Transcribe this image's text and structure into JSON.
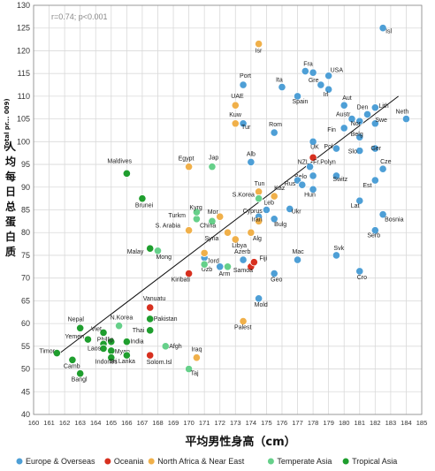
{
  "chart_data": {
    "type": "scatter",
    "xlabel": "平均男性身高（cm）",
    "ylabel_cn": "人均每日总蛋白质",
    "ylabel_en": "Total pr... 009)",
    "annotation": "r=0.74; p<0.001",
    "xlim": [
      160,
      185
    ],
    "ylim": [
      40,
      130
    ],
    "xticks": [
      160,
      161,
      162,
      163,
      164,
      165,
      166,
      167,
      168,
      169,
      170,
      171,
      172,
      173,
      174,
      175,
      176,
      177,
      178,
      179,
      180,
      181,
      182,
      183,
      184,
      185
    ],
    "yticks": [
      40,
      45,
      50,
      55,
      60,
      65,
      70,
      75,
      80,
      85,
      90,
      95,
      100,
      105,
      110,
      115,
      120,
      125,
      130
    ],
    "grid": true,
    "legend_position": "bottom",
    "colors": {
      "europe": "#4e9fd6",
      "oceania": "#d7301f",
      "africa": "#f0b04a",
      "temperate": "#66d08a",
      "tropical": "#1f9e2e"
    },
    "trendline": {
      "x": [
        161.5,
        183.5
      ],
      "y": [
        53,
        110
      ]
    },
    "series": [
      {
        "key": "europe",
        "name": "Europe & Overseas"
      },
      {
        "key": "oceania",
        "name": "Oceania"
      },
      {
        "key": "africa",
        "name": "North Africa & Near East"
      },
      {
        "key": "temperate",
        "name": "Temperate Asia"
      },
      {
        "key": "tropical",
        "name": "Tropical Asia"
      }
    ],
    "points": [
      {
        "s": "europe",
        "x": 182.5,
        "y": 125,
        "l": "Isl",
        "lx": 3,
        "ly": 6
      },
      {
        "s": "europe",
        "x": 184,
        "y": 105,
        "l": "Neth",
        "lx": -12,
        "ly": -6
      },
      {
        "s": "europe",
        "x": 177.5,
        "y": 115.5,
        "l": "Fra",
        "lx": -2,
        "ly": -6
      },
      {
        "s": "europe",
        "x": 178,
        "y": 115.2,
        "l": "",
        "lx": 0,
        "ly": 0
      },
      {
        "s": "europe",
        "x": 179,
        "y": 114.5,
        "l": "USA",
        "lx": 2,
        "ly": -4
      },
      {
        "s": "europe",
        "x": 178.5,
        "y": 112.5,
        "l": "Gre",
        "lx": -14,
        "ly": -3
      },
      {
        "s": "europe",
        "x": 176,
        "y": 112,
        "l": "Ita",
        "lx": -7,
        "ly": -6
      },
      {
        "s": "europe",
        "x": 179,
        "y": 111.5,
        "l": "Irl",
        "lx": -6,
        "ly": 8
      },
      {
        "s": "europe",
        "x": 177,
        "y": 110,
        "l": "Spain",
        "lx": -6,
        "ly": 8
      },
      {
        "s": "europe",
        "x": 173.5,
        "y": 112.5,
        "l": "Port",
        "lx": -4,
        "ly": -8
      },
      {
        "s": "europe",
        "x": 180,
        "y": 108,
        "l": "Aut",
        "lx": -2,
        "ly": -6
      },
      {
        "s": "europe",
        "x": 182,
        "y": 107.5,
        "l": "Lith",
        "lx": 4,
        "ly": 0
      },
      {
        "s": "europe",
        "x": 180.5,
        "y": 105,
        "l": "Austr",
        "lx": -18,
        "ly": -3
      },
      {
        "s": "europe",
        "x": 181.5,
        "y": 106,
        "l": "Den",
        "lx": -12,
        "ly": -6
      },
      {
        "s": "europe",
        "x": 182,
        "y": 104,
        "l": "Swe",
        "lx": 0,
        "ly": -2
      },
      {
        "s": "europe",
        "x": 181,
        "y": 104.5,
        "l": "Nor",
        "lx": -10,
        "ly": 5
      },
      {
        "s": "europe",
        "x": 180,
        "y": 103,
        "l": "Fin",
        "lx": -19,
        "ly": 4
      },
      {
        "s": "europe",
        "x": 181,
        "y": 101,
        "l": "Belg",
        "lx": -10,
        "ly": -1
      },
      {
        "s": "europe",
        "x": 173.5,
        "y": 104,
        "l": "Tur",
        "lx": -2,
        "ly": 6
      },
      {
        "s": "europe",
        "x": 175.5,
        "y": 102,
        "l": "Rom",
        "lx": -6,
        "ly": -7
      },
      {
        "s": "europe",
        "x": 178,
        "y": 100,
        "l": "UK",
        "lx": -3,
        "ly": 8
      },
      {
        "s": "europe",
        "x": 179.5,
        "y": 98.5,
        "l": "Pol",
        "lx": -14,
        "ly": 0
      },
      {
        "s": "europe",
        "x": 181,
        "y": 98,
        "l": "Slo",
        "lx": -13,
        "ly": 3
      },
      {
        "s": "europe",
        "x": 182,
        "y": 98.5,
        "l": "Ger",
        "lx": -5,
        "ly": 2
      },
      {
        "s": "europe",
        "x": 174,
        "y": 95.5,
        "l": "Alb",
        "lx": -5,
        "ly": -7
      },
      {
        "s": "europe",
        "x": 177.8,
        "y": 94.5,
        "l": "NZL",
        "lx": -14,
        "ly": -3
      },
      {
        "s": "europe",
        "x": 182.5,
        "y": 94,
        "l": "Cze",
        "lx": -3,
        "ly": -6
      },
      {
        "s": "europe",
        "x": 178,
        "y": 92.5,
        "l": "Belo",
        "lx": -21,
        "ly": 3
      },
      {
        "s": "europe",
        "x": 179.5,
        "y": 92.5,
        "l": "Switz",
        "lx": -4,
        "ly": 6
      },
      {
        "s": "europe",
        "x": 177,
        "y": 91.5,
        "l": "",
        "lx": 0,
        "ly": 0
      },
      {
        "s": "europe",
        "x": 177.3,
        "y": 90.5,
        "l": "Rus",
        "lx": -20,
        "ly": 1
      },
      {
        "s": "europe",
        "x": 182,
        "y": 91.5,
        "l": "Est",
        "lx": -14,
        "ly": 8
      },
      {
        "s": "europe",
        "x": 178,
        "y": 89.5,
        "l": "Hun",
        "lx": -10,
        "ly": 8
      },
      {
        "s": "europe",
        "x": 181,
        "y": 87,
        "l": "Lat",
        "lx": -10,
        "ly": 8
      },
      {
        "s": "europe",
        "x": 175,
        "y": 85,
        "l": "Leb",
        "lx": -3,
        "ly": -6
      },
      {
        "s": "europe",
        "x": 174.5,
        "y": 83.5,
        "l": "Cyprus",
        "lx": -18,
        "ly": -4
      },
      {
        "s": "europe",
        "x": 176.5,
        "y": 85.2,
        "l": "Ukr",
        "lx": 2,
        "ly": 5
      },
      {
        "s": "europe",
        "x": 175.5,
        "y": 83,
        "l": "Bulg",
        "lx": 0,
        "ly": 8
      },
      {
        "s": "europe",
        "x": 182.5,
        "y": 84,
        "l": "Bosnia",
        "lx": 2,
        "ly": 8
      },
      {
        "s": "europe",
        "x": 182,
        "y": 80.5,
        "l": "Serb",
        "lx": -9,
        "ly": 8
      },
      {
        "s": "europe",
        "x": 179.5,
        "y": 75,
        "l": "Svk",
        "lx": -3,
        "ly": -6
      },
      {
        "s": "europe",
        "x": 177,
        "y": 74,
        "l": "Mac",
        "lx": -6,
        "ly": -7
      },
      {
        "s": "europe",
        "x": 173.5,
        "y": 74,
        "l": "Azerb",
        "lx": -10,
        "ly": -7
      },
      {
        "s": "europe",
        "x": 172,
        "y": 72.5,
        "l": "Uzb",
        "lx": -21,
        "ly": 5
      },
      {
        "s": "europe",
        "x": 171,
        "y": 74.5,
        "l": "Jord",
        "lx": 3,
        "ly": 6
      },
      {
        "s": "europe",
        "x": 175.5,
        "y": 71,
        "l": "Geo",
        "lx": -4,
        "ly": 9
      },
      {
        "s": "europe",
        "x": 181,
        "y": 71.5,
        "l": "Cro",
        "lx": -3,
        "ly": 9
      },
      {
        "s": "europe",
        "x": 174.5,
        "y": 65.5,
        "l": "Mold",
        "lx": -5,
        "ly": 9
      },
      {
        "s": "oceania",
        "x": 167.5,
        "y": 63.5,
        "l": "Vanuatu",
        "lx": -8,
        "ly": -8
      },
      {
        "s": "oceania",
        "x": 170,
        "y": 71,
        "l": "Kiribati",
        "lx": -20,
        "ly": 9
      },
      {
        "s": "oceania",
        "x": 174,
        "y": 72.5,
        "l": "Samoa",
        "lx": -20,
        "ly": 6
      },
      {
        "s": "oceania",
        "x": 174.2,
        "y": 73.5,
        "l": "Fiji",
        "lx": 6,
        "ly": -2
      },
      {
        "s": "oceania",
        "x": 178,
        "y": 96.5,
        "l": "Fr.Polyn",
        "lx": 0,
        "ly": 7
      },
      {
        "s": "oceania",
        "x": 167.5,
        "y": 53,
        "l": "Solom.Isl",
        "lx": -4,
        "ly": 10
      },
      {
        "s": "africa",
        "x": 174.5,
        "y": 121.5,
        "l": "Isr",
        "lx": -4,
        "ly": 10
      },
      {
        "s": "africa",
        "x": 173,
        "y": 108,
        "l": "UAE",
        "lx": -5,
        "ly": -8
      },
      {
        "s": "africa",
        "x": 173,
        "y": 104,
        "l": "Kuw",
        "lx": -7,
        "ly": -8
      },
      {
        "s": "africa",
        "x": 170,
        "y": 94.5,
        "l": "Egypt",
        "lx": -12,
        "ly": -7
      },
      {
        "s": "africa",
        "x": 174.5,
        "y": 89,
        "l": "Tun",
        "lx": -5,
        "ly": -7
      },
      {
        "s": "africa",
        "x": 175.5,
        "y": 88,
        "l": "Kaz",
        "lx": 0,
        "ly": -7
      },
      {
        "s": "africa",
        "x": 172,
        "y": 83.5,
        "l": "Mor",
        "lx": -14,
        "ly": -3
      },
      {
        "s": "africa",
        "x": 174.5,
        "y": 82.5,
        "l": "Iran",
        "lx": -8,
        "ly": 0
      },
      {
        "s": "africa",
        "x": 170,
        "y": 80.5,
        "l": "S. Arabia",
        "lx": -38,
        "ly": -3
      },
      {
        "s": "africa",
        "x": 172.5,
        "y": 80,
        "l": "Syria",
        "lx": -26,
        "ly": 9
      },
      {
        "s": "africa",
        "x": 173,
        "y": 78.5,
        "l": "Libya",
        "lx": -4,
        "ly": 9
      },
      {
        "s": "africa",
        "x": 174,
        "y": 80,
        "l": "Alg",
        "lx": 2,
        "ly": 9
      },
      {
        "s": "africa",
        "x": 171,
        "y": 75.5,
        "l": "",
        "lx": 0,
        "ly": 0
      },
      {
        "s": "africa",
        "x": 173.5,
        "y": 60.5,
        "l": "Palest",
        "lx": -10,
        "ly": 9
      },
      {
        "s": "africa",
        "x": 170.5,
        "y": 52.5,
        "l": "Iraq",
        "lx": -6,
        "ly": -7
      },
      {
        "s": "temperate",
        "x": 171.5,
        "y": 94.5,
        "l": "Jap",
        "lx": -4,
        "ly": -8
      },
      {
        "s": "temperate",
        "x": 174.5,
        "y": 87.5,
        "l": "S.Korea",
        "lx": -30,
        "ly": -2
      },
      {
        "s": "temperate",
        "x": 170.5,
        "y": 83,
        "l": "Turkm",
        "lx": -32,
        "ly": -2
      },
      {
        "s": "temperate",
        "x": 171.5,
        "y": 82.5,
        "l": "China",
        "lx": -14,
        "ly": 7
      },
      {
        "s": "temperate",
        "x": 170.5,
        "y": 84.5,
        "l": "Kyrg",
        "lx": -8,
        "ly": -3
      },
      {
        "s": "temperate",
        "x": 168,
        "y": 76,
        "l": "Mong",
        "lx": -2,
        "ly": 9
      },
      {
        "s": "temperate",
        "x": 171,
        "y": 73,
        "l": "",
        "lx": 0,
        "ly": 0
      },
      {
        "s": "temperate",
        "x": 172.5,
        "y": 72.5,
        "l": "Arm",
        "lx": -10,
        "ly": 10
      },
      {
        "s": "temperate",
        "x": 165.5,
        "y": 59.5,
        "l": "N.Korea",
        "lx": -10,
        "ly": -7
      },
      {
        "s": "temperate",
        "x": 168.5,
        "y": 55,
        "l": "Afgh",
        "lx": 4,
        "ly": 2
      },
      {
        "s": "temperate",
        "x": 170,
        "y": 50,
        "l": "Taj",
        "lx": 2,
        "ly": 7
      },
      {
        "s": "tropical",
        "x": 166,
        "y": 93,
        "l": "Maldives",
        "lx": -22,
        "ly": -12
      },
      {
        "s": "tropical",
        "x": 167,
        "y": 87.5,
        "l": "Brunei",
        "lx": -8,
        "ly": 10
      },
      {
        "s": "tropical",
        "x": 167.5,
        "y": 76.5,
        "l": "Malay",
        "lx": -26,
        "ly": 6
      },
      {
        "s": "tropical",
        "x": 167.5,
        "y": 61,
        "l": "Pakistan",
        "lx": 4,
        "ly": 2
      },
      {
        "s": "tropical",
        "x": 167.5,
        "y": 58.5,
        "l": "Thai",
        "lx": -20,
        "ly": 2
      },
      {
        "s": "tropical",
        "x": 163,
        "y": 59,
        "l": "Nepal",
        "lx": -14,
        "ly": -8
      },
      {
        "s": "tropical",
        "x": 164.5,
        "y": 58,
        "l": "Viet",
        "lx": -14,
        "ly": -2
      },
      {
        "s": "tropical",
        "x": 163.5,
        "y": 56.5,
        "l": "Yemen",
        "lx": -26,
        "ly": -1
      },
      {
        "s": "tropical",
        "x": 165,
        "y": 56,
        "l": "Phillip",
        "lx": -16,
        "ly": 0
      },
      {
        "s": "tropical",
        "x": 166,
        "y": 56,
        "l": "India",
        "lx": 4,
        "ly": 2
      },
      {
        "s": "tropical",
        "x": 164.5,
        "y": 55.5,
        "l": "",
        "lx": 0,
        "ly": 0
      },
      {
        "s": "tropical",
        "x": 164.5,
        "y": 54.5,
        "l": "Laos",
        "lx": -18,
        "ly": 2
      },
      {
        "s": "tropical",
        "x": 165,
        "y": 54,
        "l": "Myan",
        "lx": 4,
        "ly": 3
      },
      {
        "s": "tropical",
        "x": 161.5,
        "y": 53.5,
        "l": "Timor",
        "lx": -20,
        "ly": 0
      },
      {
        "s": "tropical",
        "x": 162.5,
        "y": 52,
        "l": "Camb",
        "lx": -10,
        "ly": 9
      },
      {
        "s": "tropical",
        "x": 165,
        "y": 52.5,
        "l": "Indones",
        "lx": -18,
        "ly": 7
      },
      {
        "s": "tropical",
        "x": 166,
        "y": 53,
        "l": "Sri Lanka",
        "lx": -20,
        "ly": 9
      },
      {
        "s": "tropical",
        "x": 163,
        "y": 49,
        "l": "Bangl",
        "lx": -10,
        "ly": 9
      }
    ]
  }
}
